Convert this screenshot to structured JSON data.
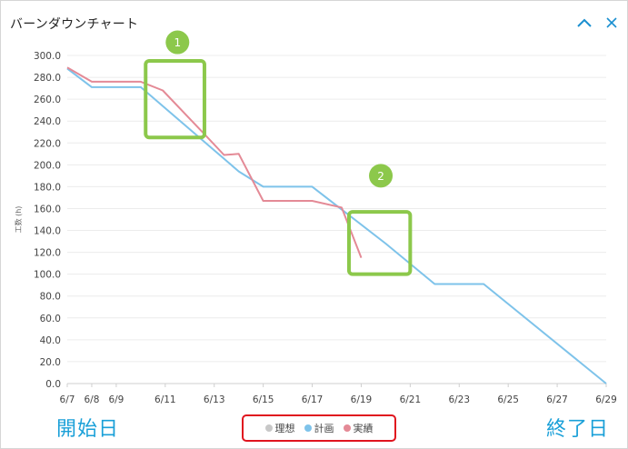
{
  "window": {
    "title": "バーンダウンチャート",
    "collapse_icon": "chevron-up-icon",
    "close_icon": "close-icon"
  },
  "chart_data": {
    "type": "line",
    "title": "",
    "ylabel": "工数 (h)",
    "xlabel": "",
    "ylim": [
      0,
      300
    ],
    "y_ticks": [
      "300.0",
      "280.0",
      "260.0",
      "240.0",
      "220.0",
      "200.0",
      "180.0",
      "160.0",
      "140.0",
      "120.0",
      "100.0",
      "80.0",
      "60.0",
      "40.0",
      "20.0",
      "0.0"
    ],
    "x_ticks": [
      "6/7",
      "6/8",
      "6/9",
      "6/11",
      "6/13",
      "6/15",
      "6/17",
      "6/19",
      "6/21",
      "6/23",
      "6/25",
      "6/27",
      "6/29"
    ],
    "x_tick_days": [
      7,
      8,
      9,
      11,
      13,
      15,
      17,
      19,
      21,
      23,
      25,
      27,
      29
    ],
    "xlim_days": [
      7,
      29
    ],
    "grid": "horizontal",
    "series": [
      {
        "name": "計画",
        "color": "#7ec3ea",
        "points": [
          [
            7,
            288
          ],
          [
            8,
            271
          ],
          [
            10,
            271
          ],
          [
            14,
            194
          ],
          [
            15,
            180
          ],
          [
            17,
            180
          ],
          [
            20,
            128
          ],
          [
            22,
            91
          ],
          [
            24,
            91
          ],
          [
            29,
            0
          ]
        ]
      },
      {
        "name": "実績",
        "color": "#e48a96",
        "points": [
          [
            7,
            289
          ],
          [
            8,
            276
          ],
          [
            10,
            276
          ],
          [
            10.9,
            268
          ],
          [
            12.6,
            228
          ],
          [
            13.4,
            209
          ],
          [
            14,
            210
          ],
          [
            15,
            167
          ],
          [
            17,
            167
          ],
          [
            18.2,
            161
          ],
          [
            19,
            115
          ]
        ]
      }
    ],
    "annotations": [
      {
        "label": "1",
        "box_days": [
          10.2,
          12.6
        ],
        "box_values": [
          225,
          295
        ],
        "badge_day": 11.5,
        "badge_value": 312
      },
      {
        "label": "2",
        "box_days": [
          18.5,
          21
        ],
        "box_values": [
          100,
          157
        ],
        "badge_day": 19.8,
        "badge_value": 190
      }
    ],
    "legend": {
      "placement": "bottom-center",
      "items": [
        {
          "label": "理想",
          "color": "#c8c8c8"
        },
        {
          "label": "計画",
          "color": "#7ec3ea"
        },
        {
          "label": "実績",
          "color": "#e48a96"
        }
      ]
    },
    "annotation_color": "#8cc84b",
    "badge_color": "#8cc84b"
  },
  "footer": {
    "start_label": "開始日",
    "end_label": "終了日",
    "highlight_color": "#e0141e"
  }
}
